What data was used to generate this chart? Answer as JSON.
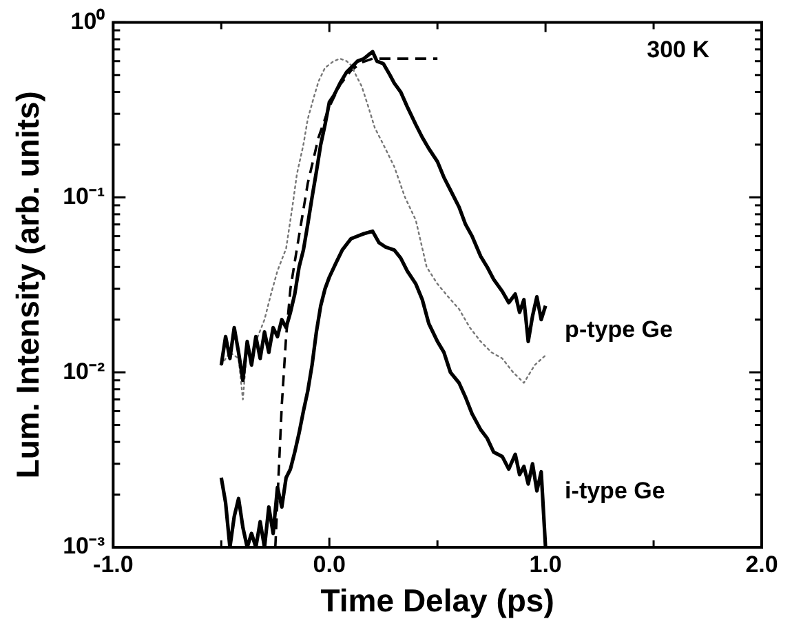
{
  "chart_data": {
    "type": "line",
    "xlabel": "Time Delay (ps)",
    "ylabel": "Lum. Intensity (arb. units)",
    "annotations": [
      "300 K"
    ],
    "log": "y",
    "grid": false,
    "legend": false,
    "marker": "none",
    "xlim": [
      -1,
      2
    ],
    "xticks": [
      {
        "value": -1,
        "label": "-1.0"
      },
      {
        "value": -0.5,
        "label": null
      },
      {
        "value": 0,
        "label": "0.0"
      },
      {
        "value": 0.5,
        "label": null
      },
      {
        "value": 1,
        "label": "1.0"
      },
      {
        "value": 1.5,
        "label": null
      },
      {
        "value": 2,
        "label": "2.0"
      }
    ],
    "ylim": [
      0.001,
      1
    ],
    "yticks": [
      {
        "value": 0.001,
        "label": "10⁻³"
      },
      {
        "value": 0.002,
        "label": null
      },
      {
        "value": 0.003,
        "label": null
      },
      {
        "value": 0.004,
        "label": null
      },
      {
        "value": 0.005,
        "label": null
      },
      {
        "value": 0.006,
        "label": null
      },
      {
        "value": 0.007,
        "label": null
      },
      {
        "value": 0.008,
        "label": null
      },
      {
        "value": 0.009,
        "label": null
      },
      {
        "value": 0.01,
        "label": "10⁻²"
      },
      {
        "value": 0.02,
        "label": null
      },
      {
        "value": 0.03,
        "label": null
      },
      {
        "value": 0.04,
        "label": null
      },
      {
        "value": 0.05,
        "label": null
      },
      {
        "value": 0.06,
        "label": null
      },
      {
        "value": 0.07,
        "label": null
      },
      {
        "value": 0.08,
        "label": null
      },
      {
        "value": 0.09,
        "label": null
      },
      {
        "value": 0.1,
        "label": "10⁻¹"
      },
      {
        "value": 0.2,
        "label": null
      },
      {
        "value": 0.3,
        "label": null
      },
      {
        "value": 0.4,
        "label": null
      },
      {
        "value": 0.5,
        "label": null
      },
      {
        "value": 0.6,
        "label": null
      },
      {
        "value": 0.7,
        "label": null
      },
      {
        "value": 0.8,
        "label": null
      },
      {
        "value": 0.9,
        "label": null
      },
      {
        "value": 1,
        "label": "10⁰"
      }
    ],
    "series": [
      {
        "name": "p-type Ge",
        "color": "#000000",
        "line_style": "solid",
        "x": [
          -0.5,
          -0.48,
          -0.46,
          -0.44,
          -0.42,
          -0.4,
          -0.38,
          -0.36,
          -0.34,
          -0.32,
          -0.3,
          -0.28,
          -0.26,
          -0.24,
          -0.22,
          -0.2,
          -0.18,
          -0.16,
          -0.14,
          -0.12,
          -0.1,
          -0.08,
          -0.06,
          -0.04,
          -0.02,
          0,
          0.02,
          0.05,
          0.08,
          0.1,
          0.13,
          0.16,
          0.18,
          0.2,
          0.22,
          0.25,
          0.28,
          0.3,
          0.33,
          0.36,
          0.4,
          0.43,
          0.46,
          0.5,
          0.53,
          0.56,
          0.6,
          0.63,
          0.66,
          0.7,
          0.73,
          0.76,
          0.8,
          0.83,
          0.86,
          0.88,
          0.9,
          0.92,
          0.94,
          0.96,
          0.98,
          1
        ],
        "values": [
          0.011,
          0.016,
          0.012,
          0.018,
          0.013,
          0.009,
          0.015,
          0.011,
          0.016,
          0.012,
          0.017,
          0.013,
          0.018,
          0.016,
          0.02,
          0.018,
          0.022,
          0.028,
          0.04,
          0.05,
          0.07,
          0.1,
          0.14,
          0.2,
          0.26,
          0.35,
          0.38,
          0.45,
          0.52,
          0.55,
          0.6,
          0.62,
          0.65,
          0.68,
          0.6,
          0.58,
          0.5,
          0.45,
          0.4,
          0.33,
          0.26,
          0.22,
          0.19,
          0.16,
          0.13,
          0.11,
          0.088,
          0.07,
          0.06,
          0.046,
          0.04,
          0.034,
          0.029,
          0.025,
          0.028,
          0.022,
          0.026,
          0.015,
          0.021,
          0.027,
          0.02,
          0.024
        ]
      },
      {
        "name": "i-type Ge",
        "color": "#000000",
        "line_style": "solid",
        "x": [
          -0.5,
          -0.48,
          -0.46,
          -0.44,
          -0.42,
          -0.4,
          -0.38,
          -0.36,
          -0.34,
          -0.32,
          -0.3,
          -0.28,
          -0.26,
          -0.24,
          -0.22,
          -0.2,
          -0.18,
          -0.16,
          -0.14,
          -0.12,
          -0.1,
          -0.08,
          -0.06,
          -0.04,
          -0.02,
          0,
          0.03,
          0.06,
          0.1,
          0.13,
          0.16,
          0.2,
          0.23,
          0.26,
          0.3,
          0.33,
          0.36,
          0.4,
          0.43,
          0.46,
          0.5,
          0.53,
          0.56,
          0.6,
          0.63,
          0.66,
          0.7,
          0.73,
          0.76,
          0.8,
          0.83,
          0.86,
          0.88,
          0.9,
          0.92,
          0.94,
          0.96,
          0.98,
          1
        ],
        "values": [
          0.0025,
          0.0018,
          0.001,
          0.0015,
          0.0019,
          0.0013,
          0.001,
          0.0012,
          0.001,
          0.0014,
          0.001,
          0.0017,
          0.0012,
          0.0022,
          0.0017,
          0.0025,
          0.0028,
          0.0035,
          0.0045,
          0.006,
          0.0078,
          0.011,
          0.017,
          0.024,
          0.03,
          0.035,
          0.042,
          0.05,
          0.058,
          0.06,
          0.062,
          0.064,
          0.055,
          0.052,
          0.05,
          0.045,
          0.038,
          0.032,
          0.026,
          0.019,
          0.015,
          0.013,
          0.01,
          0.0087,
          0.0072,
          0.0058,
          0.0047,
          0.0042,
          0.0035,
          0.0033,
          0.0028,
          0.0034,
          0.0026,
          0.0029,
          0.0023,
          0.003,
          0.0021,
          0.0027,
          0.001
        ]
      },
      {
        "color": "#777777",
        "line_style": "dotted",
        "x": [
          -0.5,
          -0.46,
          -0.42,
          -0.4,
          -0.38,
          -0.36,
          -0.34,
          -0.3,
          -0.27,
          -0.24,
          -0.2,
          -0.17,
          -0.15,
          -0.12,
          -0.1,
          -0.07,
          -0.05,
          -0.02,
          0.02,
          0.05,
          0.08,
          0.1,
          0.13,
          0.15,
          0.18,
          0.21,
          0.25,
          0.3,
          0.35,
          0.4,
          0.45,
          0.5,
          0.55,
          0.6,
          0.65,
          0.7,
          0.75,
          0.8,
          0.85,
          0.9,
          0.95,
          1
        ],
        "values": [
          0.011,
          0.013,
          0.012,
          0.007,
          0.014,
          0.012,
          0.015,
          0.02,
          0.028,
          0.038,
          0.051,
          0.09,
          0.136,
          0.2,
          0.28,
          0.38,
          0.46,
          0.55,
          0.6,
          0.62,
          0.6,
          0.57,
          0.48,
          0.43,
          0.33,
          0.25,
          0.2,
          0.15,
          0.1,
          0.074,
          0.04,
          0.032,
          0.027,
          0.023,
          0.018,
          0.015,
          0.013,
          0.012,
          0.01,
          0.0087,
          0.011,
          0.0125
        ]
      },
      {
        "color": "#000000",
        "line_style": "dashed",
        "x": [
          -0.25,
          -0.23,
          -0.22,
          -0.2,
          -0.18,
          -0.15,
          -0.12,
          -0.1,
          -0.05,
          0,
          0.05,
          0.1,
          0.15,
          0.2,
          0.5
        ],
        "values": [
          0.001,
          0.0035,
          0.0065,
          0.016,
          0.03,
          0.051,
          0.085,
          0.12,
          0.22,
          0.33,
          0.44,
          0.53,
          0.59,
          0.62,
          0.62
        ]
      }
    ]
  }
}
